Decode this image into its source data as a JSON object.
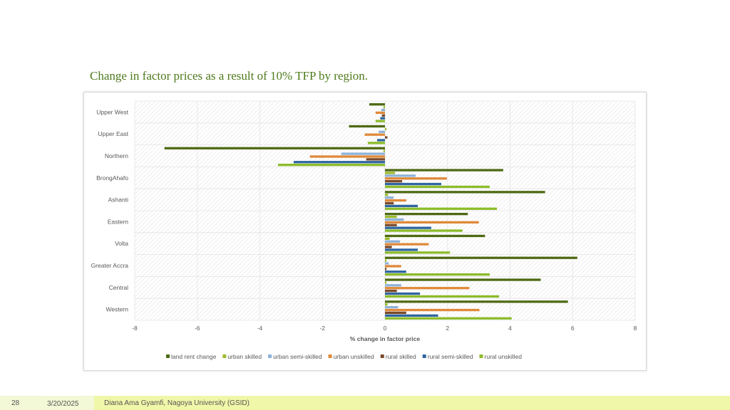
{
  "slide": {
    "title": "Change in factor prices as a result of 10% TFP by region.",
    "number": "28",
    "date": "3/20/2025",
    "author": "Diana Ama Gyamfi, Nagoya University (GSID)"
  },
  "colors": {
    "title": "#4f7a1c",
    "footer_left": "#f3f8d6",
    "footer_right": "#f0f7a9"
  },
  "chart_data": {
    "type": "bar",
    "orientation": "horizontal",
    "title": "",
    "xlabel": "% change in factor price",
    "ylabel": "",
    "xlim": [
      -8,
      8
    ],
    "xticks": [
      -8,
      -6,
      -4,
      -2,
      0,
      2,
      4,
      6,
      8
    ],
    "grid": true,
    "legend": "bottom",
    "categories": [
      "Upper West",
      "Upper East",
      "Northern",
      "BrongAhafo",
      "Ashanti",
      "Eastern",
      "Volta",
      "Greater Accra",
      "Central",
      "Western"
    ],
    "series": [
      {
        "name": "land rent change",
        "color": "#4e6a13",
        "values": [
          -0.5,
          -1.15,
          -7.05,
          3.78,
          5.12,
          2.65,
          3.2,
          6.15,
          4.98,
          5.85
        ]
      },
      {
        "name": "urban skilled",
        "color": "#9cbb2f",
        "values": [
          -0.05,
          0.05,
          -0.05,
          0.32,
          0.1,
          0.38,
          0.15,
          0.05,
          0.05,
          0.08
        ]
      },
      {
        "name": "urban semi-skilled",
        "color": "#8db3d9",
        "values": [
          -0.12,
          -0.2,
          -1.4,
          0.98,
          0.28,
          0.6,
          0.48,
          0.12,
          0.52,
          0.42
        ]
      },
      {
        "name": "urban unskilled",
        "color": "#e0893a",
        "values": [
          -0.3,
          -0.65,
          -2.4,
          1.98,
          0.68,
          3.0,
          1.4,
          0.52,
          2.7,
          3.02
        ]
      },
      {
        "name": "rural skilled",
        "color": "#7a4a2a",
        "values": [
          -0.1,
          0.08,
          -0.6,
          0.55,
          0.28,
          0.38,
          0.22,
          0.05,
          0.38,
          0.68
        ]
      },
      {
        "name": "rural semi-skilled",
        "color": "#2f64a0",
        "values": [
          -0.15,
          -0.25,
          -2.92,
          1.8,
          1.05,
          1.48,
          1.05,
          0.68,
          1.12,
          1.7
        ]
      },
      {
        "name": "rural unskilled",
        "color": "#8cbc2a",
        "values": [
          -0.3,
          -0.55,
          -3.42,
          3.35,
          3.58,
          2.48,
          2.08,
          3.35,
          3.65,
          4.05
        ]
      }
    ]
  }
}
